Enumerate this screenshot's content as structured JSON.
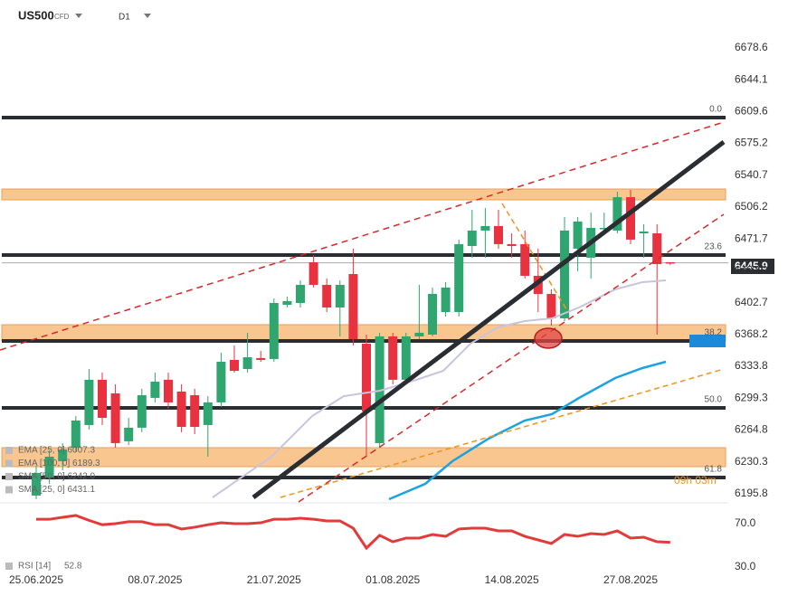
{
  "chart_data": {
    "type": "candlestick",
    "symbol": "US500",
    "instrument_type": "CFD",
    "timeframe": "D1",
    "categories": [
      "25.06.2025",
      null,
      null,
      null,
      null,
      null,
      null,
      null,
      null,
      "08.07.2025",
      null,
      null,
      null,
      null,
      null,
      null,
      null,
      null,
      "21.07.2025",
      null,
      null,
      null,
      null,
      null,
      null,
      null,
      null,
      "01.08.2025",
      null,
      null,
      null,
      null,
      null,
      null,
      null,
      null,
      "14.08.2025",
      null,
      null,
      null,
      null,
      null,
      null,
      null,
      null,
      "27.08.2025",
      null,
      null,
      null
    ],
    "open": [
      6193.8,
      6213.4,
      6231.0,
      6245.7,
      6270.2,
      6319.2,
      6304.5,
      6252.6,
      6267.3,
      6299.6,
      6319.2,
      6306.4,
      6302.5,
      6270.2,
      6294.7,
      6340.7,
      6330.9,
      6342.7,
      6341.7,
      6400.4,
      6402.4,
      6446.5,
      6422.0,
      6397.5,
      6433.7,
      6358.3,
      6250.6,
      6366.2,
      6319.2,
      6366.2,
      6368.1,
      6392.6,
      6392.6,
      6464.1,
      6480.8,
      6485.7,
      6466.1,
      6466.1,
      6431.8,
      6412.2,
      6385.8,
      6461.2,
      6451.4,
      6482.7,
      6480.8,
      6517.0,
      6477.8,
      6477.8,
      6446.5
    ],
    "high": [
      6226.1,
      6242.8,
      6250.6,
      6280.0,
      6330.9,
      6327.0,
      6314.3,
      6278.0,
      6309.4,
      6327.0,
      6327.0,
      6314.3,
      6309.4,
      6301.5,
      6348.5,
      6356.4,
      6370.1,
      6350.5,
      6407.3,
      6409.3,
      6426.9,
      6454.3,
      6428.9,
      6426.9,
      6461.2,
      6368.1,
      6370.1,
      6370.1,
      6370.1,
      6422.0,
      6419.1,
      6424.9,
      6471.0,
      6503.3,
      6505.2,
      6503.3,
      6477.8,
      6480.8,
      6461.2,
      6417.1,
      6495.5,
      6495.5,
      6500.3,
      6500.3,
      6522.9,
      6524.8,
      6487.6,
      6487.6,
      6446.5
    ],
    "low": [
      6189.9,
      6206.5,
      6221.2,
      6240.8,
      6265.3,
      6270.2,
      6245.7,
      6248.6,
      6262.4,
      6294.7,
      6287.8,
      6262.4,
      6260.4,
      6235.9,
      6289.8,
      6327.0,
      6327.0,
      6338.7,
      6338.7,
      6397.5,
      6397.5,
      6419.1,
      6392.6,
      6366.2,
      6356.4,
      6235.9,
      6245.7,
      6314.3,
      6314.3,
      6363.2,
      6366.2,
      6387.7,
      6387.7,
      6451.4,
      6451.4,
      6461.2,
      6451.4,
      6428.9,
      6392.6,
      6377.9,
      6382.8,
      6436.7,
      6428.9,
      6477.8,
      6477.8,
      6466.1,
      6451.4,
      6368.1,
      6443.5
    ],
    "close": [
      6218.3,
      6235.9,
      6243.7,
      6275.1,
      6319.2,
      6278.0,
      6250.6,
      6267.3,
      6302.5,
      6317.2,
      6294.7,
      6268.2,
      6268.2,
      6294.7,
      6338.7,
      6328.9,
      6343.6,
      6340.7,
      6402.4,
      6404.4,
      6422.0,
      6422.0,
      6397.5,
      6422.0,
      6363.2,
      6284.9,
      6366.2,
      6319.2,
      6366.2,
      6370.1,
      6412.2,
      6419.1,
      6466.1,
      6480.8,
      6485.7,
      6466.1,
      6464.1,
      6431.8,
      6412.2,
      6385.8,
      6480.8,
      6490.6,
      6483.7,
      6483.7,
      6517.0,
      6471.0,
      6479.8,
      6444.5,
      6445.9
    ],
    "up_color": "#2fa56f",
    "down_color": "#e8323f",
    "ylim": [
      6186.9,
      6730.5
    ],
    "yticks": [
      6678.6,
      6644.1,
      6609.6,
      6575.2,
      6540.7,
      6506.2,
      6471.7,
      6437.2,
      6402.7,
      6368.2,
      6333.8,
      6299.3,
      6264.8,
      6230.3,
      6195.8
    ],
    "last_price": 6445.9,
    "fib_levels": [
      {
        "label": "0.0",
        "value": 6603.2
      },
      {
        "label": "23.6",
        "value": 6454.3
      },
      {
        "label": "38.2",
        "value": 6361.3
      },
      {
        "label": "50.0",
        "value": 6288.8
      },
      {
        "label": "61.8",
        "value": 6213.4
      }
    ],
    "indicator_legend": [
      "EMA [25, 0] 6007.3",
      "EMA [100, 0] 6189.3",
      "SMA [50, 0] 6242.0",
      "SMA [25, 0] 6431.1"
    ],
    "countdown": "09h 03m",
    "rsi": {
      "label": "RSI [14]",
      "value": 52.8,
      "color": "#e23b3b",
      "values": [
        74,
        74,
        75.8,
        77.5,
        73,
        69,
        70,
        71.7,
        71.7,
        69,
        69,
        65,
        66.7,
        69,
        70.8,
        70,
        70,
        70.8,
        74,
        74,
        75,
        74,
        72.5,
        72.5,
        65.8,
        47.5,
        59.2,
        53.3,
        56.7,
        56.7,
        60,
        58.3,
        65,
        65.8,
        65.8,
        63.3,
        63.3,
        58.3,
        55,
        51.7,
        60,
        58.3,
        60.8,
        60,
        63.3,
        56.7,
        57.5,
        53.3,
        52.8
      ],
      "ylim": [
        19.2,
        85.8
      ],
      "yticks": [
        {
          "value": 70,
          "label": "70.0"
        },
        {
          "value": 30,
          "label": "30.0"
        }
      ]
    }
  }
}
